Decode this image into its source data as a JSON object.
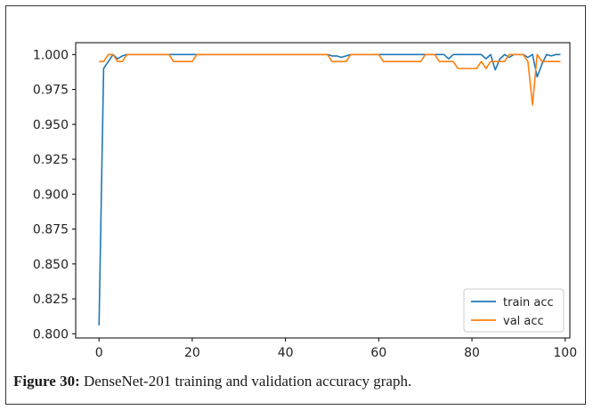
{
  "chart_data": {
    "type": "line",
    "title": "",
    "xlabel": "",
    "ylabel": "",
    "xlim": [
      -5,
      101
    ],
    "ylim": [
      0.797,
      1.0085
    ],
    "x_ticks": [
      0,
      20,
      40,
      60,
      80,
      100
    ],
    "y_ticks": [
      0.8,
      0.825,
      0.85,
      0.875,
      0.9,
      0.925,
      0.95,
      0.975,
      1.0
    ],
    "y_tick_labels": [
      "0.800",
      "0.825",
      "0.850",
      "0.875",
      "0.900",
      "0.925",
      "0.950",
      "0.975",
      "1.000"
    ],
    "grid": false,
    "legend_position": "bottom-right",
    "series": [
      {
        "name": "train acc",
        "color": "#1f77b4",
        "x": [
          0,
          1,
          2,
          3,
          4,
          5,
          6,
          7,
          8,
          9,
          10,
          11,
          12,
          13,
          14,
          15,
          16,
          17,
          18,
          19,
          20,
          21,
          22,
          23,
          24,
          25,
          26,
          27,
          28,
          29,
          30,
          31,
          32,
          33,
          34,
          35,
          36,
          37,
          38,
          39,
          40,
          41,
          42,
          43,
          44,
          45,
          46,
          47,
          48,
          49,
          50,
          51,
          52,
          53,
          54,
          55,
          56,
          57,
          58,
          59,
          60,
          61,
          62,
          63,
          64,
          65,
          66,
          67,
          68,
          69,
          70,
          71,
          72,
          73,
          74,
          75,
          76,
          77,
          78,
          79,
          80,
          81,
          82,
          83,
          84,
          85,
          86,
          87,
          88,
          89,
          90,
          91,
          92,
          93,
          94,
          95,
          96,
          97,
          98,
          99
        ],
        "y": [
          0.806,
          0.99,
          0.995,
          1.0,
          0.997,
          0.999,
          1.0,
          1.0,
          1.0,
          1.0,
          1.0,
          1.0,
          1.0,
          1.0,
          1.0,
          1.0,
          1.0,
          1.0,
          1.0,
          1.0,
          1.0,
          1.0,
          1.0,
          1.0,
          1.0,
          1.0,
          1.0,
          1.0,
          1.0,
          1.0,
          1.0,
          1.0,
          1.0,
          1.0,
          1.0,
          1.0,
          1.0,
          1.0,
          1.0,
          1.0,
          1.0,
          1.0,
          1.0,
          1.0,
          1.0,
          1.0,
          1.0,
          1.0,
          1.0,
          1.0,
          0.999,
          0.999,
          0.998,
          0.999,
          1.0,
          1.0,
          1.0,
          1.0,
          1.0,
          1.0,
          1.0,
          1.0,
          1.0,
          1.0,
          1.0,
          1.0,
          1.0,
          1.0,
          1.0,
          1.0,
          1.0,
          1.0,
          1.0,
          1.0,
          1.0,
          0.997,
          1.0,
          1.0,
          1.0,
          1.0,
          1.0,
          1.0,
          1.0,
          0.997,
          1.0,
          0.989,
          0.997,
          1.0,
          0.998,
          1.0,
          1.0,
          1.0,
          0.998,
          1.0,
          0.984,
          0.993,
          1.0,
          0.999,
          1.0,
          1.0
        ]
      },
      {
        "name": "val acc",
        "color": "#ff7f0e",
        "x": [
          0,
          1,
          2,
          3,
          4,
          5,
          6,
          7,
          8,
          9,
          10,
          11,
          12,
          13,
          14,
          15,
          16,
          17,
          18,
          19,
          20,
          21,
          22,
          23,
          24,
          25,
          26,
          27,
          28,
          29,
          30,
          31,
          32,
          33,
          34,
          35,
          36,
          37,
          38,
          39,
          40,
          41,
          42,
          43,
          44,
          45,
          46,
          47,
          48,
          49,
          50,
          51,
          52,
          53,
          54,
          55,
          56,
          57,
          58,
          59,
          60,
          61,
          62,
          63,
          64,
          65,
          66,
          67,
          68,
          69,
          70,
          71,
          72,
          73,
          74,
          75,
          76,
          77,
          78,
          79,
          80,
          81,
          82,
          83,
          84,
          85,
          86,
          87,
          88,
          89,
          90,
          91,
          92,
          93,
          94,
          95,
          96,
          97,
          98,
          99
        ],
        "y": [
          0.995,
          0.995,
          1.0,
          1.0,
          0.995,
          0.995,
          1.0,
          1.0,
          1.0,
          1.0,
          1.0,
          1.0,
          1.0,
          1.0,
          1.0,
          1.0,
          0.995,
          0.995,
          0.995,
          0.995,
          0.995,
          1.0,
          1.0,
          1.0,
          1.0,
          1.0,
          1.0,
          1.0,
          1.0,
          1.0,
          1.0,
          1.0,
          1.0,
          1.0,
          1.0,
          1.0,
          1.0,
          1.0,
          1.0,
          1.0,
          1.0,
          1.0,
          1.0,
          1.0,
          1.0,
          1.0,
          1.0,
          1.0,
          1.0,
          1.0,
          0.995,
          0.995,
          0.995,
          0.995,
          1.0,
          1.0,
          1.0,
          1.0,
          1.0,
          1.0,
          1.0,
          0.995,
          0.995,
          0.995,
          0.995,
          0.995,
          0.995,
          0.995,
          0.995,
          0.995,
          1.0,
          1.0,
          1.0,
          0.995,
          0.995,
          0.995,
          0.995,
          0.99,
          0.99,
          0.99,
          0.99,
          0.99,
          0.995,
          0.99,
          0.995,
          0.995,
          0.995,
          0.995,
          1.0,
          1.0,
          1.0,
          1.0,
          0.995,
          0.964,
          1.0,
          0.995,
          0.995,
          0.995,
          0.995,
          0.995
        ]
      }
    ]
  },
  "caption": {
    "label": "Figure 30:",
    "text": "DenseNet-201 training and validation accuracy graph."
  }
}
